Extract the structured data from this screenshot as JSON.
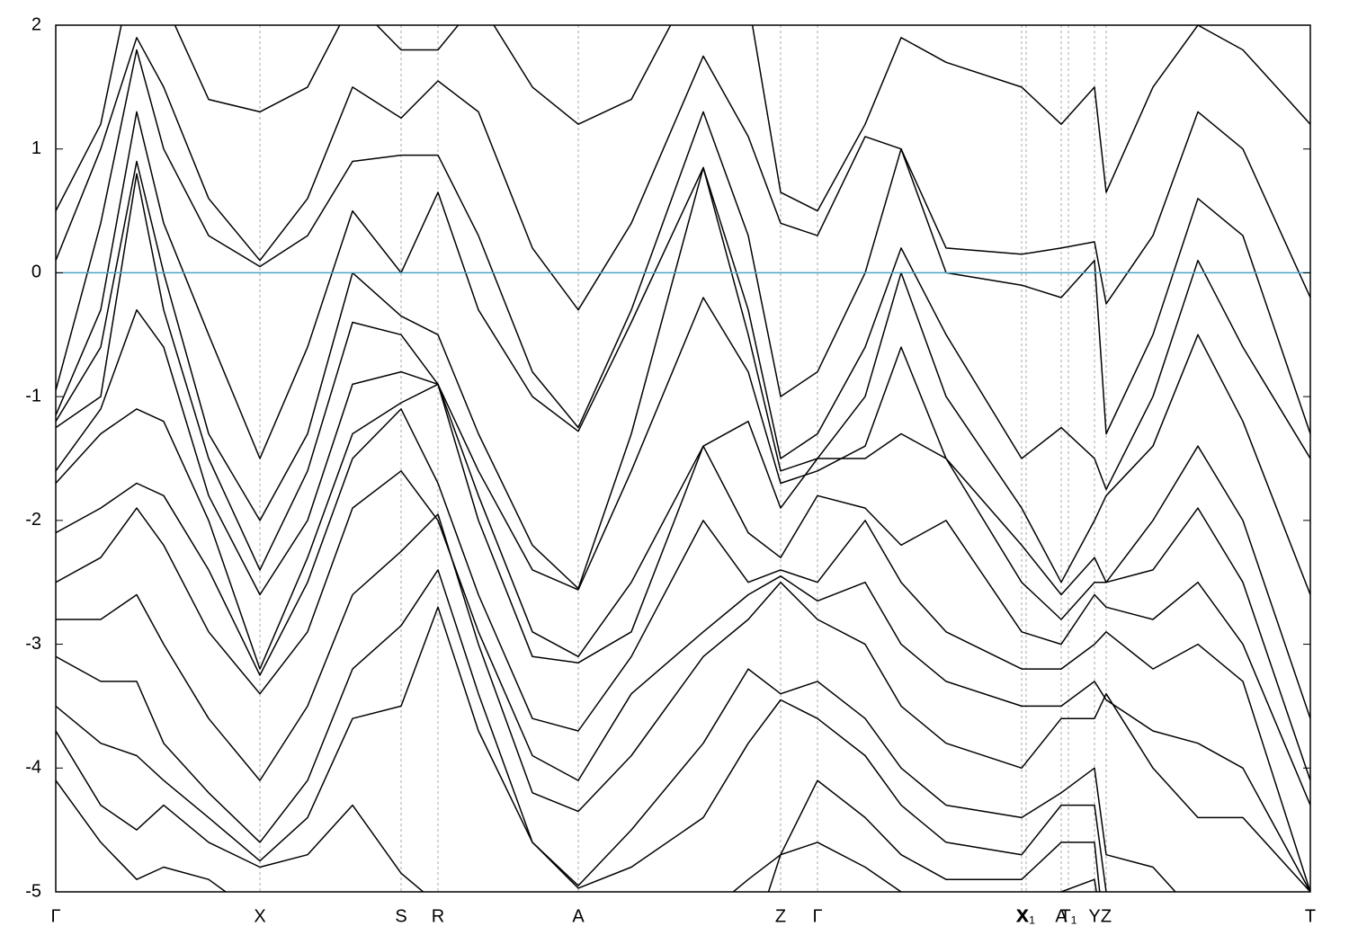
{
  "chart_data": {
    "type": "line",
    "x": [
      0,
      0.5,
      0.9,
      1.2,
      1.7,
      2.27,
      2.8,
      3.3,
      3.84,
      4.25,
      4.7,
      5.3,
      5.81,
      6.4,
      7.2,
      7.7,
      8.06,
      8.47,
      9.0,
      9.4,
      9.9,
      10.74,
      11.18,
      11.55,
      11.68,
      12.2,
      12.7,
      13.2,
      13.95
    ],
    "xlim": [
      0,
      13.95
    ],
    "xticks": [
      {
        "value": 0,
        "label": "Γ"
      },
      {
        "value": 2.27,
        "label": "X"
      },
      {
        "value": 3.84,
        "label": "S"
      },
      {
        "value": 4.25,
        "label": "R"
      },
      {
        "value": 5.81,
        "label": "A"
      },
      {
        "value": 8.06,
        "label": "Z"
      },
      {
        "value": 8.47,
        "label": "Γ"
      },
      {
        "value": 10.74,
        "label": "X"
      },
      {
        "value": 10.79,
        "label": "X₁"
      },
      {
        "value": 11.18,
        "label": "A"
      },
      {
        "value": 11.26,
        "label": "T₁"
      },
      {
        "value": 11.55,
        "label": "Y"
      },
      {
        "value": 11.68,
        "label": "Z"
      },
      {
        "value": 13.95,
        "label": "T"
      }
    ],
    "ylim": [
      -5,
      2
    ],
    "yticks": [
      -5,
      -4,
      -3,
      -2,
      -1,
      0,
      1,
      2
    ],
    "grid": true,
    "hline": {
      "value": 0,
      "color": "#4ba3c3"
    },
    "series": [
      {
        "color": "#000000",
        "values": [
          0.5,
          1.2,
          2.6,
          2.2,
          1.4,
          1.3,
          1.5,
          2.2,
          1.8,
          1.8,
          2.2,
          1.5,
          1.2,
          1.4,
          2.5,
          2.2,
          0.65,
          0.5,
          1.2,
          1.9,
          1.7,
          1.5,
          1.2,
          1.5,
          0.65,
          1.5,
          2.0,
          1.8,
          1.2
        ]
      },
      {
        "color": "#000000",
        "values": [
          0.1,
          1.0,
          1.9,
          1.5,
          0.6,
          0.1,
          0.6,
          1.5,
          1.25,
          1.55,
          1.3,
          0.2,
          -0.3,
          0.4,
          1.75,
          1.1,
          0.4,
          0.3,
          1.1,
          1.0,
          0.2,
          0.15,
          0.2,
          0.25,
          -0.25,
          0.3,
          1.3,
          1.0,
          -0.2
        ]
      },
      {
        "color": "#000000",
        "values": [
          -0.95,
          0.4,
          1.8,
          1.0,
          0.3,
          0.05,
          0.3,
          0.9,
          0.95,
          0.95,
          0.3,
          -0.8,
          -1.25,
          -0.3,
          1.3,
          0.3,
          -1.0,
          -0.8,
          0.0,
          1.0,
          0.0,
          -0.1,
          -0.2,
          0.1,
          -1.3,
          -0.5,
          0.6,
          0.3,
          -1.3
        ]
      },
      {
        "color": "#000000",
        "values": [
          -1.15,
          -0.3,
          1.3,
          0.4,
          -0.5,
          -1.5,
          -0.6,
          0.5,
          0.0,
          0.65,
          -0.3,
          -1.0,
          -1.28,
          -0.4,
          0.85,
          -0.3,
          -1.5,
          -1.3,
          -0.6,
          0.2,
          -0.5,
          -1.5,
          -1.25,
          -1.5,
          -1.75,
          -1.0,
          0.1,
          -0.6,
          -1.5
        ]
      },
      {
        "color": "#000000",
        "values": [
          -1.2,
          -0.6,
          0.9,
          0.0,
          -1.3,
          -2.0,
          -1.3,
          0.0,
          -0.35,
          -0.5,
          -1.3,
          -2.2,
          -2.55,
          -1.3,
          0.85,
          -0.5,
          -1.6,
          -1.5,
          -1.0,
          0.0,
          -1.0,
          -1.9,
          -2.5,
          -2.0,
          -1.8,
          -1.4,
          -0.5,
          -1.2,
          -2.6
        ]
      },
      {
        "color": "#000000",
        "values": [
          -1.25,
          -1.0,
          0.8,
          -0.3,
          -1.5,
          -2.4,
          -1.6,
          -0.4,
          -0.5,
          -0.9,
          -1.6,
          -2.4,
          -2.56,
          -1.6,
          -0.2,
          -0.8,
          -1.7,
          -1.6,
          -1.4,
          -0.6,
          -1.5,
          -2.2,
          -2.6,
          -2.3,
          -2.5,
          -2.0,
          -1.4,
          -2.0,
          -3.6
        ]
      },
      {
        "color": "#000000",
        "values": [
          -1.6,
          -1.1,
          -0.3,
          -0.6,
          -1.8,
          -2.6,
          -2.0,
          -0.9,
          -0.8,
          -0.9,
          -1.8,
          -2.9,
          -3.1,
          -2.5,
          -1.4,
          -1.2,
          -1.9,
          -1.5,
          -1.5,
          -1.3,
          -1.5,
          -2.5,
          -2.8,
          -2.5,
          -2.5,
          -2.4,
          -1.9,
          -2.5,
          -4.1
        ]
      },
      {
        "color": "#000000",
        "values": [
          -1.7,
          -1.3,
          -1.1,
          -1.2,
          -2.0,
          -3.2,
          -2.3,
          -1.3,
          -1.05,
          -0.9,
          -2.0,
          -3.1,
          -3.15,
          -2.9,
          -1.4,
          -2.1,
          -2.3,
          -1.8,
          -1.9,
          -2.2,
          -2.0,
          -2.9,
          -3.0,
          -2.6,
          -2.7,
          -2.8,
          -2.5,
          -3.0,
          -4.3
        ]
      },
      {
        "color": "#000000",
        "values": [
          -2.1,
          -1.9,
          -1.7,
          -1.8,
          -2.4,
          -3.25,
          -2.5,
          -1.5,
          -1.1,
          -1.7,
          -2.6,
          -3.6,
          -3.7,
          -3.1,
          -2.0,
          -2.5,
          -2.4,
          -2.5,
          -2.0,
          -2.5,
          -2.9,
          -3.2,
          -3.2,
          -3.0,
          -2.9,
          -3.2,
          -3.0,
          -3.3,
          -5.0
        ]
      },
      {
        "color": "#000000",
        "values": [
          -2.5,
          -2.3,
          -1.9,
          -2.2,
          -2.9,
          -3.4,
          -2.9,
          -1.9,
          -1.6,
          -2.0,
          -2.9,
          -3.9,
          -4.1,
          -3.4,
          -2.9,
          -2.6,
          -2.45,
          -2.65,
          -2.5,
          -3.0,
          -3.3,
          -3.5,
          -3.5,
          -3.3,
          -3.45,
          -3.7,
          -3.8,
          -4.0,
          -5.0
        ]
      },
      {
        "color": "#000000",
        "values": [
          -2.8,
          -2.8,
          -2.6,
          -3.0,
          -3.6,
          -4.1,
          -3.5,
          -2.6,
          -2.25,
          -1.95,
          -3.0,
          -4.2,
          -4.35,
          -3.9,
          -3.1,
          -2.8,
          -2.5,
          -2.8,
          -3.0,
          -3.5,
          -3.8,
          -4.0,
          -3.6,
          -3.6,
          -3.4,
          -4.0,
          -4.4,
          -4.4,
          -5.0
        ]
      },
      {
        "color": "#000000",
        "values": [
          -3.1,
          -3.3,
          -3.3,
          -3.8,
          -4.2,
          -4.6,
          -4.1,
          -3.2,
          -2.85,
          -2.4,
          -3.4,
          -4.6,
          -4.95,
          -4.5,
          -3.8,
          -3.2,
          -3.4,
          -3.3,
          -3.6,
          -4.0,
          -4.3,
          -4.4,
          -4.2,
          -4.0,
          -4.7,
          -4.8,
          -5.2,
          -5.4,
          -5.5
        ]
      },
      {
        "color": "#000000",
        "values": [
          -3.5,
          -3.8,
          -3.9,
          -4.1,
          -4.4,
          -4.75,
          -4.4,
          -3.6,
          -3.5,
          -2.7,
          -3.7,
          -4.6,
          -4.97,
          -4.8,
          -4.4,
          -3.8,
          -3.45,
          -3.6,
          -3.9,
          -4.3,
          -4.6,
          -4.7,
          -4.3,
          -4.3,
          -5.0,
          -5.5,
          -5.5,
          -5.5,
          -5.5
        ]
      },
      {
        "color": "#000000",
        "values": [
          -3.7,
          -4.3,
          -4.5,
          -4.3,
          -4.6,
          -4.8,
          -4.7,
          -4.3,
          -4.85,
          -5.1,
          -5.5,
          -5.3,
          -5.0,
          -5.3,
          -5.2,
          -4.9,
          -4.7,
          -4.1,
          -4.4,
          -4.7,
          -4.9,
          -4.9,
          -4.6,
          -4.6,
          -5.5,
          -5.5,
          -5.5,
          -5.5,
          -5.5
        ]
      },
      {
        "color": "#000000",
        "values": [
          -4.1,
          -4.6,
          -4.9,
          -4.8,
          -4.9,
          -5.2,
          -5.5,
          -5.5,
          -5.5,
          -5.5,
          -5.5,
          -5.5,
          -5.5,
          -5.5,
          -5.5,
          -5.5,
          -4.7,
          -4.6,
          -4.8,
          -5.0,
          -5.2,
          -5.3,
          -5.0,
          -4.9,
          -5.5,
          -5.5,
          -5.5,
          -5.5,
          -5.5
        ]
      }
    ]
  }
}
